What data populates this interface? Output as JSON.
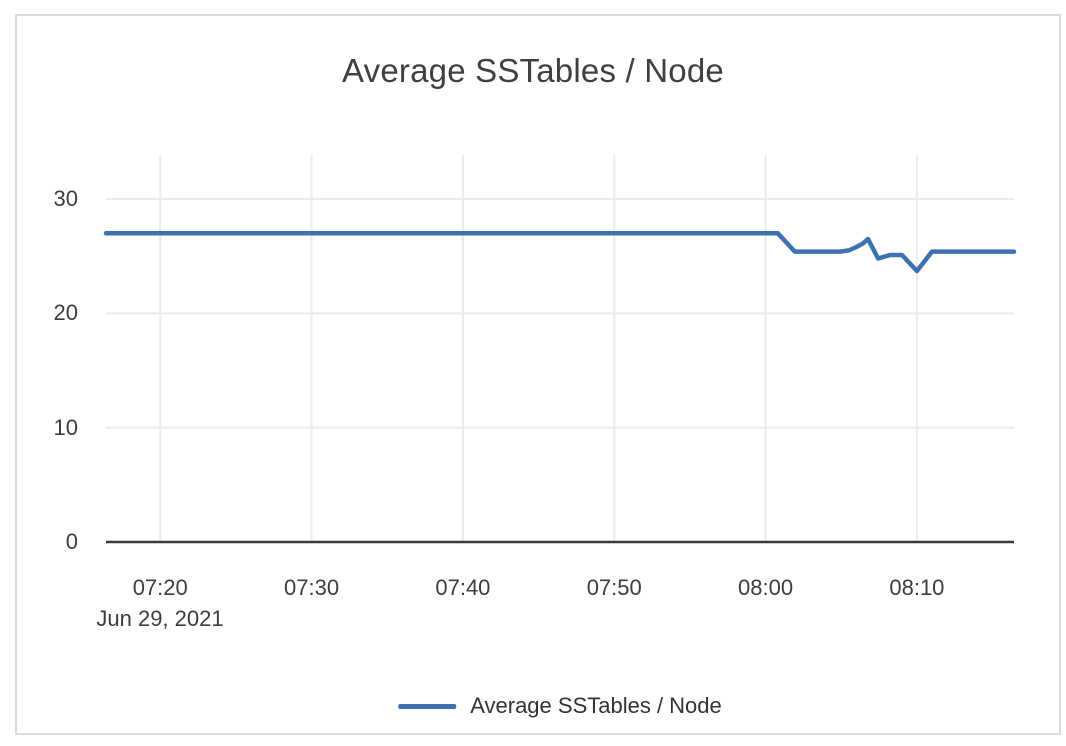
{
  "colors": {
    "line": "#3d72b1",
    "grid": "#ebebeb",
    "axis": "#3a3a3a",
    "text": "#3d3d3d",
    "card_border": "#dcdcdc",
    "background": "#ffffff"
  },
  "chart_data": {
    "type": "line",
    "title": "Average SSTables / Node",
    "xlabel": "",
    "ylabel": "",
    "x_date_label": "Jun 29, 2021",
    "x_ticks": [
      "07:20",
      "07:30",
      "07:40",
      "07:50",
      "08:00",
      "08:10"
    ],
    "y_ticks": [
      "0",
      "10",
      "20",
      "30"
    ],
    "x_range": [
      "07:16:25",
      "08:16:25"
    ],
    "ylim": [
      0,
      33.8
    ],
    "grid": true,
    "legend_position": "bottom-center",
    "series": [
      {
        "name": "Average SSTables / Node",
        "color": "#3d72b1",
        "points": [
          [
            "07:16:25",
            27
          ],
          [
            "08:00:49",
            27
          ],
          [
            "08:01:56",
            25.4
          ],
          [
            "08:04:55",
            25.4
          ],
          [
            "08:05:30",
            25.5
          ],
          [
            "08:06:00",
            25.8
          ],
          [
            "08:06:25",
            26.1
          ],
          [
            "08:06:46",
            26.5
          ],
          [
            "08:07:26",
            24.8
          ],
          [
            "08:08:13",
            25.1
          ],
          [
            "08:09:01",
            25.1
          ],
          [
            "08:10:00",
            23.7
          ],
          [
            "08:11:00",
            25.4
          ],
          [
            "08:16:25",
            25.4
          ]
        ]
      }
    ]
  }
}
